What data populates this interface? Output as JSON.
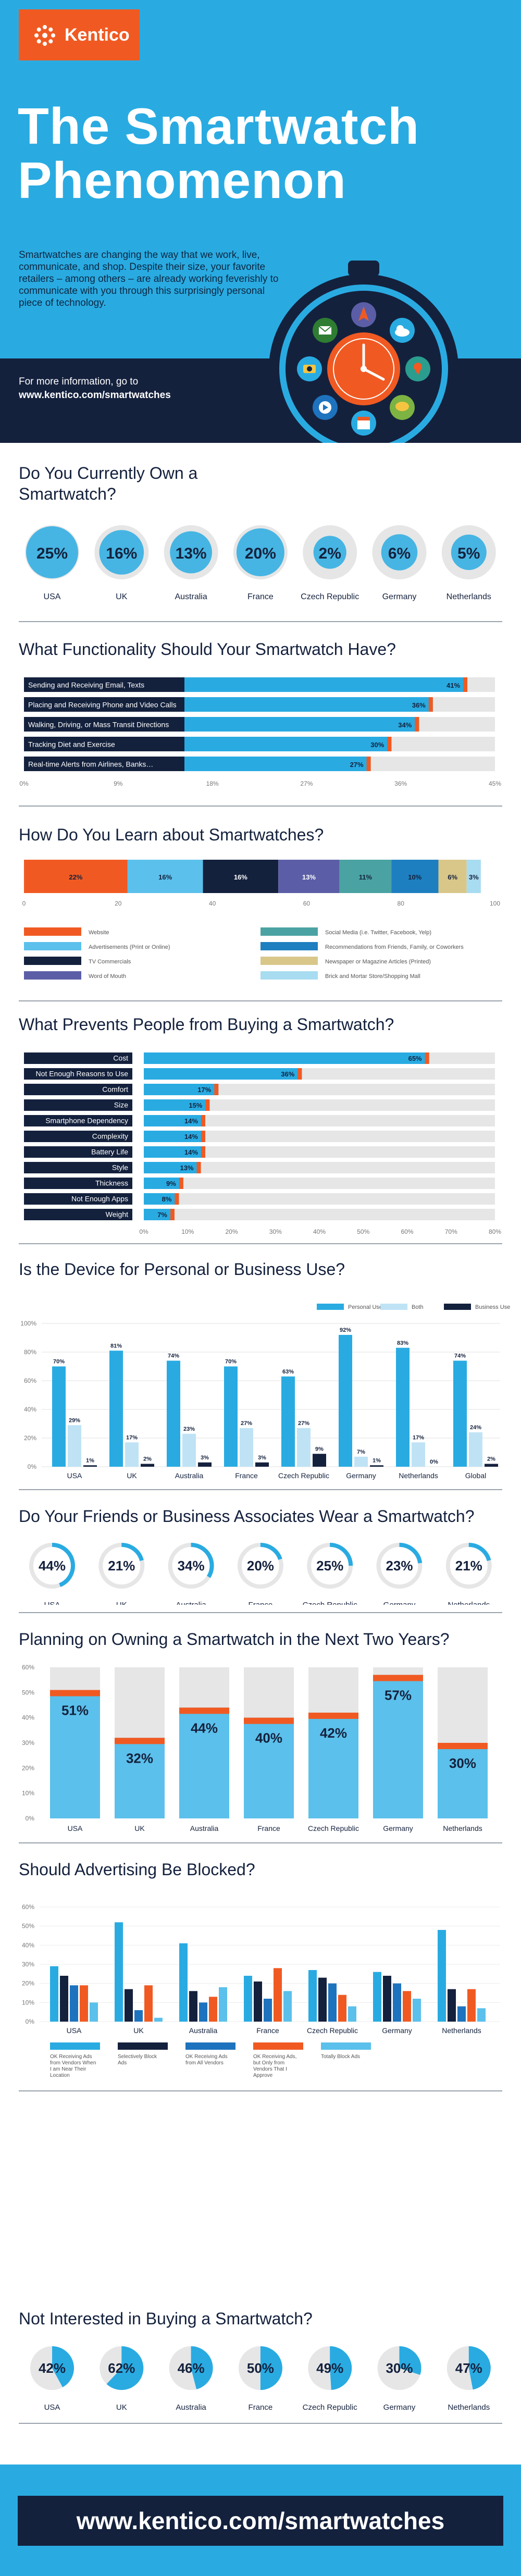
{
  "brand": {
    "name": "Kentico"
  },
  "title": "The Smartwatch Phenomenon",
  "intro": "Smartwatches are changing the way that we work, live, communicate, and shop. Despite their size, your favorite retailers – among others – are already working feverishly to communicate with you through this surprisingly personal piece of technology.",
  "more_info": {
    "line1": "For more information, go to",
    "link": "www.kentico.com/smartwatches"
  },
  "footer_url": "www.kentico.com/smartwatches",
  "colors": {
    "blue": "#29abe2",
    "navy": "#14213d",
    "orange": "#f05a22",
    "light": "#bfe3f5",
    "gray": "#e6e6e6"
  },
  "sections": {
    "own": "Do You Currently Own a Smartwatch?",
    "functionality": "What Functionality Should Your Smartwatch Have?",
    "learn": "How Do You Learn about Smartwatches?",
    "prevents": "What Prevents People from Buying a Smartwatch?",
    "use": "Is the Device for Personal or Business Use?",
    "friends": "Do Your Friends or Business Associates Wear a Smartwatch?",
    "planning": "Planning on Owning a Smartwatch in the Next Two Years?",
    "advertising": "Should Advertising Be Blocked?",
    "not_interested": "Not Interested in Buying a Smartwatch?"
  },
  "chart_data": [
    {
      "id": "own",
      "type": "table",
      "categories": [
        "USA",
        "UK",
        "Australia",
        "France",
        "Czech Republic",
        "Germany",
        "Netherlands"
      ],
      "values": [
        25,
        16,
        13,
        20,
        2,
        6,
        5
      ],
      "labels": [
        "25%",
        "16%",
        "13%",
        "20%",
        "2%",
        "6%",
        "5%"
      ]
    },
    {
      "id": "functionality",
      "type": "bar",
      "categories": [
        "Sending and Receiving Email, Texts",
        "Placing and Receiving Phone and Video Calls",
        "Walking, Driving, or Mass Transit Directions",
        "Tracking Diet and Exercise",
        "Real-time Alerts from Airlines, Banks…"
      ],
      "values": [
        41,
        36,
        34,
        30,
        27
      ],
      "labels": [
        "41%",
        "36%",
        "34%",
        "30%",
        "27%"
      ],
      "ticks": [
        "0%",
        "9%",
        "18%",
        "27%",
        "36%",
        "45%"
      ],
      "xlim": [
        0,
        45
      ]
    },
    {
      "id": "learn",
      "type": "bar",
      "stacked": true,
      "series": [
        {
          "name": "Website",
          "value": 22,
          "label": "22%"
        },
        {
          "name": "Advertisements (Print or Online)",
          "value": 16,
          "label": "16%"
        },
        {
          "name": "TV Commercials",
          "value": 16,
          "label": "16%"
        },
        {
          "name": "Word of Mouth",
          "value": 13,
          "label": "13%"
        },
        {
          "name": "Social Media (i.e. Twitter, Facebook, Yelp)",
          "value": 11,
          "label": "11%"
        },
        {
          "name": "Recommendations from Friends, Family, or Coworkers",
          "value": 10,
          "label": "10%"
        },
        {
          "name": "Newspaper or Magazine Articles (Printed)",
          "value": 6,
          "label": "6%"
        },
        {
          "name": "Brick and Mortar Store/Shopping Mall",
          "value": 3,
          "label": "3%"
        }
      ],
      "ticks": [
        "0",
        "20",
        "40",
        "60",
        "80",
        "100"
      ],
      "xlim": [
        0,
        100
      ]
    },
    {
      "id": "prevents",
      "type": "bar",
      "categories": [
        "Cost",
        "Not Enough Reasons to Use",
        "Comfort",
        "Size",
        "Smartphone Dependency",
        "Complexity",
        "Battery Life",
        "Style",
        "Thickness",
        "Not Enough Apps",
        "Weight"
      ],
      "values": [
        65,
        36,
        17,
        15,
        14,
        14,
        14,
        13,
        9,
        8,
        7
      ],
      "labels": [
        "65%",
        "36%",
        "17%",
        "15%",
        "14%",
        "14%",
        "14%",
        "13%",
        "9%",
        "8%",
        "7%"
      ],
      "ticks": [
        "0%",
        "10%",
        "20%",
        "30%",
        "40%",
        "50%",
        "60%",
        "70%",
        "80%"
      ],
      "xlim": [
        0,
        80
      ]
    },
    {
      "id": "use",
      "type": "bar",
      "categories": [
        "USA",
        "UK",
        "Australia",
        "France",
        "Czech Republic",
        "Germany",
        "Netherlands",
        "Global"
      ],
      "series": [
        {
          "name": "Personal Use",
          "values": [
            70,
            81,
            74,
            70,
            63,
            92,
            83,
            74
          ],
          "labels": [
            "70%",
            "81%",
            "74%",
            "70%",
            "63%",
            "92%",
            "83%",
            "74%"
          ]
        },
        {
          "name": "Both",
          "values": [
            29,
            17,
            23,
            27,
            27,
            7,
            17,
            24
          ],
          "labels": [
            "29%",
            "17%",
            "23%",
            "27%",
            "27%",
            "7%",
            "17%",
            "24%"
          ]
        },
        {
          "name": "Business Use",
          "values": [
            1,
            2,
            3,
            3,
            9,
            1,
            0,
            2
          ],
          "labels": [
            "1%",
            "2%",
            "3%",
            "3%",
            "9%",
            "1%",
            "0%",
            "2%"
          ]
        }
      ],
      "ticks": [
        "0%",
        "20%",
        "40%",
        "60%",
        "80%",
        "100%"
      ],
      "ylim": [
        0,
        100
      ]
    },
    {
      "id": "friends",
      "type": "pie",
      "categories": [
        "USA",
        "UK",
        "Australia",
        "France",
        "Czech Republic",
        "Germany",
        "Netherlands"
      ],
      "values": [
        44,
        21,
        34,
        20,
        25,
        23,
        21
      ],
      "labels": [
        "44%",
        "21%",
        "34%",
        "20%",
        "25%",
        "23%",
        "21%"
      ]
    },
    {
      "id": "planning",
      "type": "bar",
      "categories": [
        "USA",
        "UK",
        "Australia",
        "France",
        "Czech Republic",
        "Germany",
        "Netherlands"
      ],
      "values": [
        51,
        32,
        44,
        40,
        42,
        57,
        30
      ],
      "labels": [
        "51%",
        "32%",
        "44%",
        "40%",
        "42%",
        "57%",
        "30%"
      ],
      "ticks": [
        "0%",
        "10%",
        "20%",
        "30%",
        "40%",
        "50%",
        "60%"
      ],
      "ylim": [
        0,
        60
      ]
    },
    {
      "id": "advertising",
      "type": "bar",
      "categories": [
        "USA",
        "UK",
        "Australia",
        "France",
        "Czech Republic",
        "Germany",
        "Netherlands"
      ],
      "series": [
        {
          "name": "OK Receiving Ads from Vendors When I am Near Their Location",
          "values": [
            29,
            52,
            41,
            24,
            27,
            26,
            48
          ]
        },
        {
          "name": "Selectively Block Ads",
          "values": [
            24,
            17,
            16,
            21,
            23,
            24,
            17
          ]
        },
        {
          "name": "OK Receiving Ads from All Vendors",
          "values": [
            19,
            6,
            10,
            12,
            20,
            20,
            8
          ]
        },
        {
          "name": "OK Receiving Ads, but Only from Vendors That I Approve",
          "values": [
            19,
            19,
            13,
            28,
            14,
            16,
            17
          ]
        },
        {
          "name": "Totally Block Ads",
          "values": [
            10,
            2,
            18,
            16,
            8,
            12,
            7
          ]
        }
      ],
      "ticks": [
        "0%",
        "10%",
        "20%",
        "30%",
        "40%",
        "50%",
        "60%"
      ],
      "ylim": [
        0,
        60
      ]
    },
    {
      "id": "not_interested",
      "type": "pie",
      "categories": [
        "USA",
        "UK",
        "Australia",
        "France",
        "Czech Republic",
        "Germany",
        "Netherlands"
      ],
      "values": [
        42,
        62,
        46,
        50,
        49,
        30,
        47
      ],
      "labels": [
        "42%",
        "62%",
        "46%",
        "50%",
        "49%",
        "30%",
        "47%"
      ]
    }
  ]
}
